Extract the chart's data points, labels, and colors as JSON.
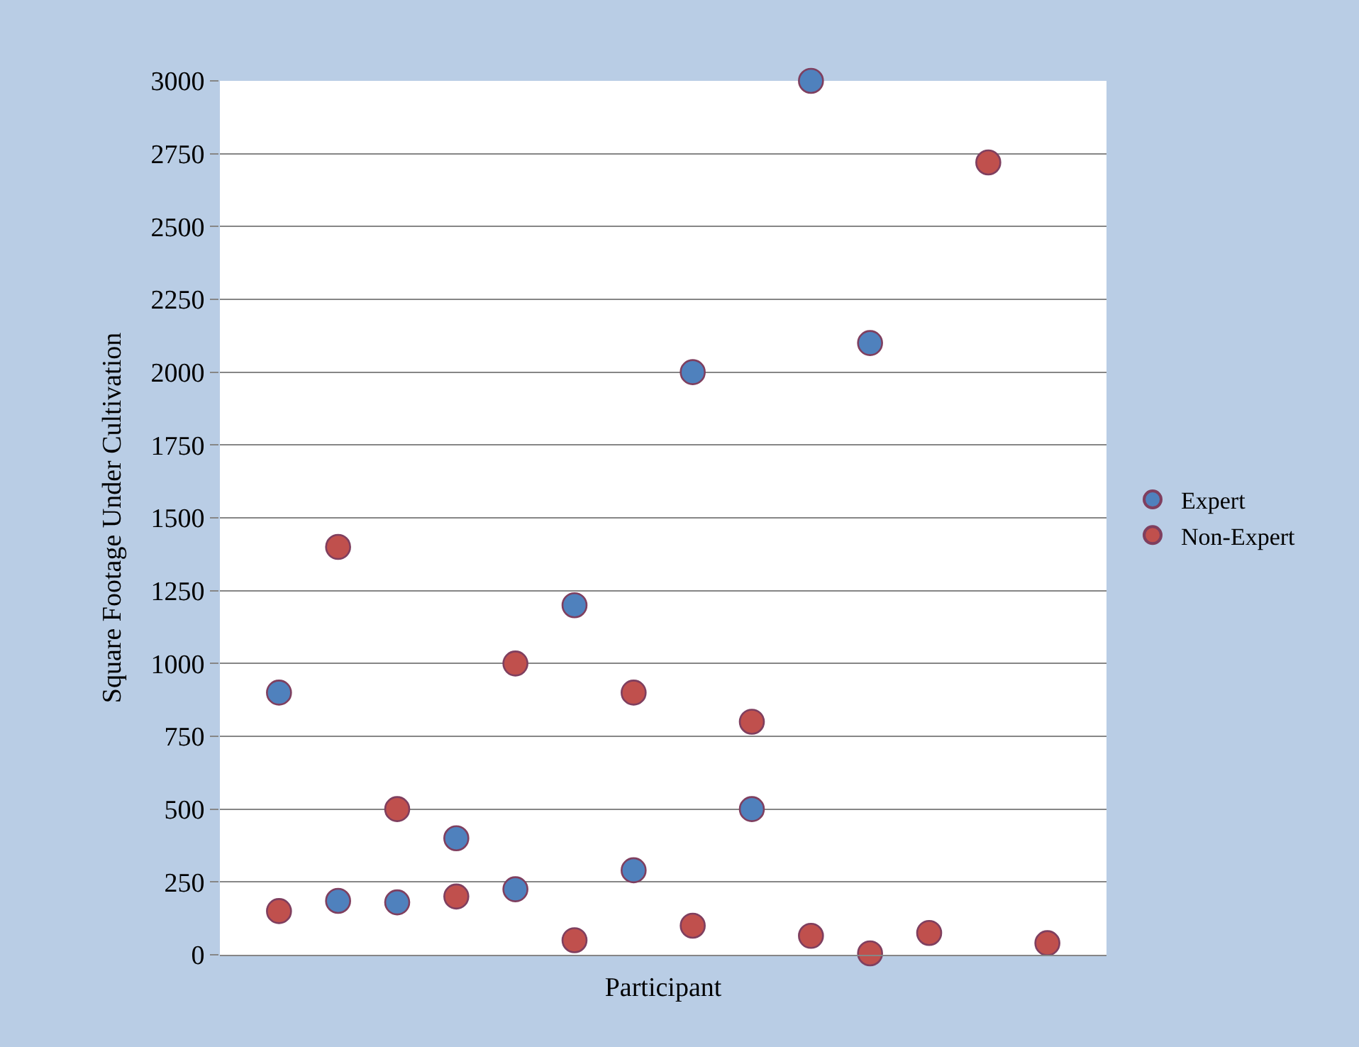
{
  "chart_data": {
    "type": "scatter",
    "xlabel": "Participant",
    "ylabel": "Square Footage Under Cultivation",
    "categories": [
      null,
      null,
      null,
      null,
      null,
      null,
      null,
      null,
      null,
      null,
      null,
      null,
      null,
      null
    ],
    "series": [
      {
        "name": "Expert",
        "color": "#4f81bd",
        "values": [
          900,
          185,
          180,
          400,
          225,
          1200,
          290,
          2000,
          500,
          3000,
          2100,
          null,
          null,
          null
        ]
      },
      {
        "name": "Non-Expert",
        "color": "#c0504d",
        "values": [
          150,
          1400,
          500,
          200,
          1000,
          50,
          900,
          100,
          800,
          65,
          5,
          75,
          2720,
          40
        ]
      }
    ],
    "ylim": [
      0,
      3000
    ],
    "yticks": [
      0,
      250,
      500,
      750,
      1000,
      1250,
      1500,
      1750,
      2000,
      2250,
      2500,
      2750,
      3000
    ],
    "grid": "y",
    "legend": "right",
    "marker": "circle",
    "tick_labels": "y"
  }
}
